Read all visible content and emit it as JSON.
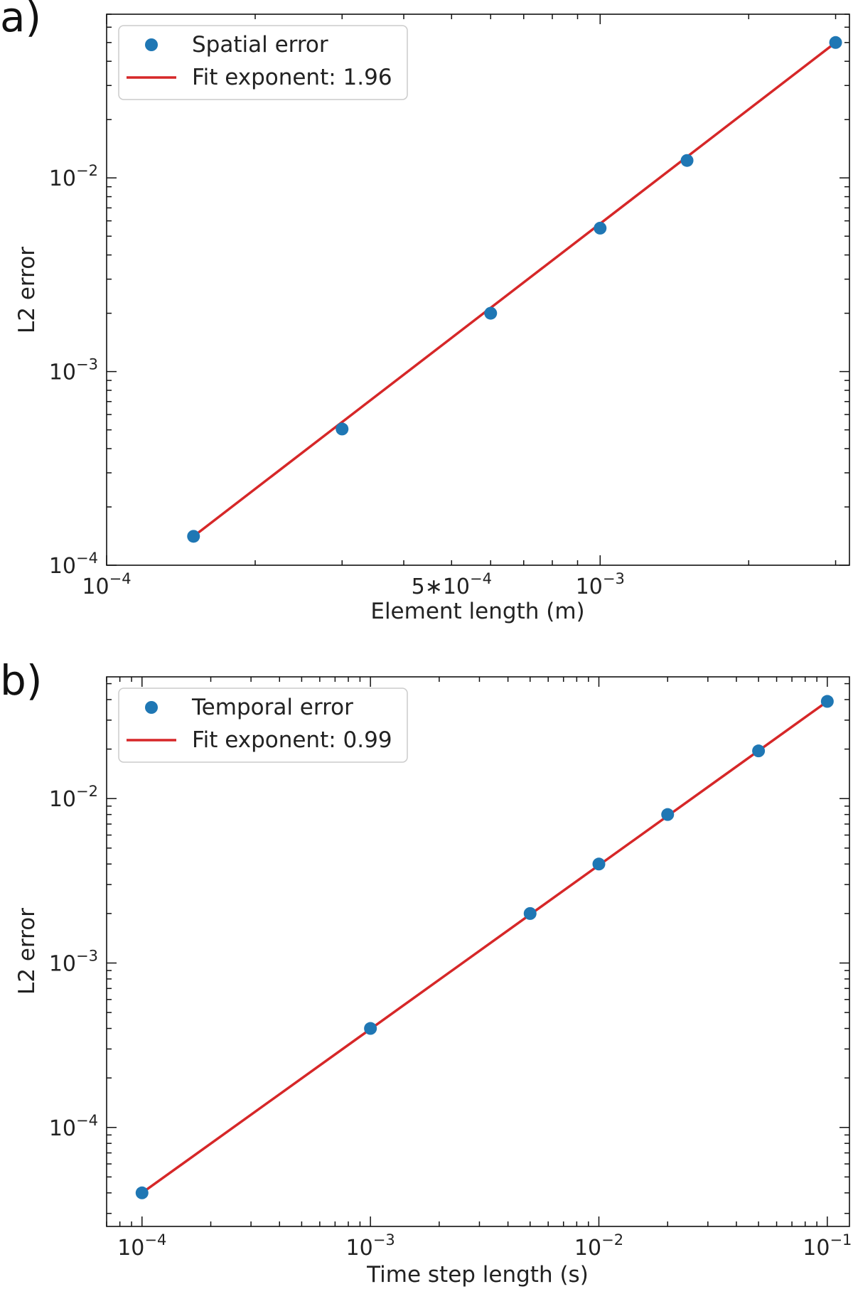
{
  "colors": {
    "marker": "#1f77b4",
    "fit": "#d62728",
    "axes": "#111111"
  },
  "chart_data": [
    {
      "type": "scatter",
      "panel_label": "a)",
      "xscale": "log",
      "yscale": "log",
      "xlabel": "Element length (m)",
      "ylabel": "L2 error",
      "xlim": [
        0.0001,
        0.0032
      ],
      "ylim": [
        0.0001,
        0.07
      ],
      "x_ticks": [
        {
          "value": 0.0001,
          "base": "10",
          "exp": "−4"
        },
        {
          "value": 0.0005,
          "base": "5∗10",
          "exp": "−4"
        },
        {
          "value": 0.001,
          "base": "10",
          "exp": "−3"
        }
      ],
      "y_ticks": [
        {
          "value": 0.0001,
          "base": "10",
          "exp": "−4"
        },
        {
          "value": 0.001,
          "base": "10",
          "exp": "−3"
        },
        {
          "value": 0.01,
          "base": "10",
          "exp": "−2"
        }
      ],
      "series": [
        {
          "name": "Spatial error",
          "kind": "scatter",
          "x": [
            0.00015,
            0.0003,
            0.0006,
            0.001,
            0.0015,
            0.003
          ],
          "y": [
            0.000141,
            0.000505,
            0.002,
            0.0055,
            0.0123,
            0.05
          ]
        },
        {
          "name": "Fit exponent: 1.96",
          "kind": "line",
          "x": [
            0.00015,
            0.003
          ],
          "y": [
            0.000141,
            0.05
          ]
        }
      ],
      "legend": [
        "Spatial error",
        "Fit exponent: 1.96"
      ],
      "legend_loc": "upper left"
    },
    {
      "type": "scatter",
      "panel_label": "b)",
      "xscale": "log",
      "yscale": "log",
      "xlabel": "Time step length (s)",
      "ylabel": "L2 error",
      "xlim": [
        7e-05,
        0.125
      ],
      "ylim": [
        2.5e-05,
        0.055
      ],
      "x_ticks": [
        {
          "value": 0.0001,
          "base": "10",
          "exp": "−4"
        },
        {
          "value": 0.001,
          "base": "10",
          "exp": "−3"
        },
        {
          "value": 0.01,
          "base": "10",
          "exp": "−2"
        },
        {
          "value": 0.1,
          "base": "10",
          "exp": "−1"
        }
      ],
      "y_ticks": [
        {
          "value": 0.0001,
          "base": "10",
          "exp": "−4"
        },
        {
          "value": 0.001,
          "base": "10",
          "exp": "−3"
        },
        {
          "value": 0.01,
          "base": "10",
          "exp": "−2"
        }
      ],
      "series": [
        {
          "name": "Temporal error",
          "kind": "scatter",
          "x": [
            0.0001,
            0.001,
            0.005,
            0.01,
            0.02,
            0.05,
            0.1
          ],
          "y": [
            4e-05,
            0.0004,
            0.002,
            0.004,
            0.008,
            0.0195,
            0.039
          ]
        },
        {
          "name": "Fit exponent: 0.99",
          "kind": "line",
          "x": [
            0.0001,
            0.1
          ],
          "y": [
            4e-05,
            0.039
          ]
        }
      ],
      "legend": [
        "Temporal error",
        "Fit exponent: 0.99"
      ],
      "legend_loc": "upper left"
    }
  ]
}
